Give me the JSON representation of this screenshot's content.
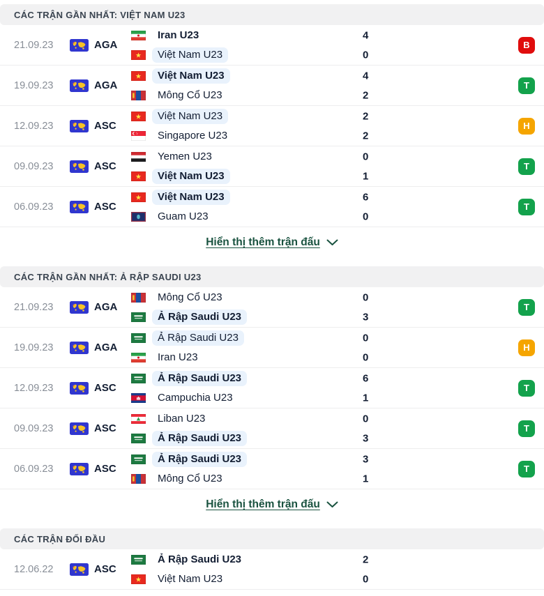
{
  "panel": {
    "show_more_label": "Hiển thị thêm trận đấu",
    "result_colors": {
      "win": "#13a24c",
      "loss": "#e00d0d",
      "draw": "#f5a500"
    },
    "highlight_color": "#e9f2fc",
    "link_color": "#19523f",
    "sections": [
      {
        "title": "CÁC TRẬN GẦN NHẤT: VIỆT NAM U23",
        "show_more": true,
        "matches": [
          {
            "date": "21.09.23",
            "competition": "AGA",
            "competition_icon": "world-map-icon",
            "home": {
              "name": "Iran U23",
              "flag": "iran",
              "score": "4",
              "bold": true,
              "highlight": false
            },
            "away": {
              "name": "Việt Nam U23",
              "flag": "vietnam",
              "score": "0",
              "bold": false,
              "highlight": true
            },
            "result": {
              "label": "B",
              "type": "loss"
            }
          },
          {
            "date": "19.09.23",
            "competition": "AGA",
            "competition_icon": "world-map-icon",
            "home": {
              "name": "Việt Nam U23",
              "flag": "vietnam",
              "score": "4",
              "bold": true,
              "highlight": true
            },
            "away": {
              "name": "Mông Cổ U23",
              "flag": "mongolia",
              "score": "2",
              "bold": false,
              "highlight": false
            },
            "result": {
              "label": "T",
              "type": "win"
            }
          },
          {
            "date": "12.09.23",
            "competition": "ASC",
            "competition_icon": "world-map-icon",
            "home": {
              "name": "Việt Nam U23",
              "flag": "vietnam",
              "score": "2",
              "bold": false,
              "highlight": true
            },
            "away": {
              "name": "Singapore U23",
              "flag": "singapore",
              "score": "2",
              "bold": false,
              "highlight": false
            },
            "result": {
              "label": "H",
              "type": "draw"
            }
          },
          {
            "date": "09.09.23",
            "competition": "ASC",
            "competition_icon": "world-map-icon",
            "home": {
              "name": "Yemen U23",
              "flag": "yemen",
              "score": "0",
              "bold": false,
              "highlight": false
            },
            "away": {
              "name": "Việt Nam U23",
              "flag": "vietnam",
              "score": "1",
              "bold": true,
              "highlight": true
            },
            "result": {
              "label": "T",
              "type": "win"
            }
          },
          {
            "date": "06.09.23",
            "competition": "ASC",
            "competition_icon": "world-map-icon",
            "home": {
              "name": "Việt Nam U23",
              "flag": "vietnam",
              "score": "6",
              "bold": true,
              "highlight": true
            },
            "away": {
              "name": "Guam U23",
              "flag": "guam",
              "score": "0",
              "bold": false,
              "highlight": false
            },
            "result": {
              "label": "T",
              "type": "win"
            }
          }
        ]
      },
      {
        "title": "CÁC TRẬN GẦN NHẤT: Ả RẬP SAUDI U23",
        "show_more": true,
        "matches": [
          {
            "date": "21.09.23",
            "competition": "AGA",
            "competition_icon": "world-map-icon",
            "home": {
              "name": "Mông Cổ U23",
              "flag": "mongolia",
              "score": "0",
              "bold": false,
              "highlight": false
            },
            "away": {
              "name": "Ả Rập Saudi U23",
              "flag": "saudi",
              "score": "3",
              "bold": true,
              "highlight": true
            },
            "result": {
              "label": "T",
              "type": "win"
            }
          },
          {
            "date": "19.09.23",
            "competition": "AGA",
            "competition_icon": "world-map-icon",
            "home": {
              "name": "Ả Rập Saudi U23",
              "flag": "saudi",
              "score": "0",
              "bold": false,
              "highlight": true
            },
            "away": {
              "name": "Iran U23",
              "flag": "iran",
              "score": "0",
              "bold": false,
              "highlight": false
            },
            "result": {
              "label": "H",
              "type": "draw"
            }
          },
          {
            "date": "12.09.23",
            "competition": "ASC",
            "competition_icon": "world-map-icon",
            "home": {
              "name": "Ả Rập Saudi U23",
              "flag": "saudi",
              "score": "6",
              "bold": true,
              "highlight": true
            },
            "away": {
              "name": "Campuchia U23",
              "flag": "cambodia",
              "score": "1",
              "bold": false,
              "highlight": false
            },
            "result": {
              "label": "T",
              "type": "win"
            }
          },
          {
            "date": "09.09.23",
            "competition": "ASC",
            "competition_icon": "world-map-icon",
            "home": {
              "name": "Liban U23",
              "flag": "lebanon",
              "score": "0",
              "bold": false,
              "highlight": false
            },
            "away": {
              "name": "Ả Rập Saudi U23",
              "flag": "saudi",
              "score": "3",
              "bold": true,
              "highlight": true
            },
            "result": {
              "label": "T",
              "type": "win"
            }
          },
          {
            "date": "06.09.23",
            "competition": "ASC",
            "competition_icon": "world-map-icon",
            "home": {
              "name": "Ả Rập Saudi U23",
              "flag": "saudi",
              "score": "3",
              "bold": true,
              "highlight": true
            },
            "away": {
              "name": "Mông Cổ U23",
              "flag": "mongolia",
              "score": "1",
              "bold": false,
              "highlight": false
            },
            "result": {
              "label": "T",
              "type": "win"
            }
          }
        ]
      },
      {
        "title": "CÁC TRẬN ĐỐI ĐẦU",
        "show_more": false,
        "matches": [
          {
            "date": "12.06.22",
            "competition": "ASC",
            "competition_icon": "world-map-icon",
            "home": {
              "name": "Ả Rập Saudi U23",
              "flag": "saudi",
              "score": "2",
              "bold": true,
              "highlight": false
            },
            "away": {
              "name": "Việt Nam U23",
              "flag": "vietnam",
              "score": "0",
              "bold": false,
              "highlight": false
            },
            "result": null
          }
        ]
      }
    ]
  }
}
